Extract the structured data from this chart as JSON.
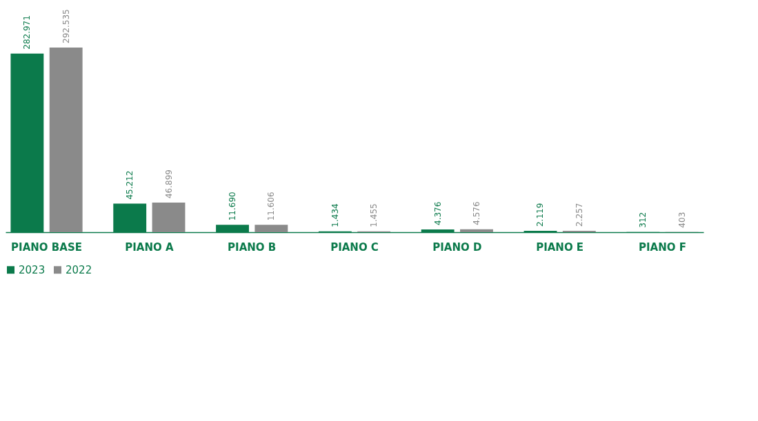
{
  "chart_data": {
    "type": "bar",
    "categories": [
      "PIANO BASE",
      "PIANO A",
      "PIANO B",
      "PIANO C",
      "PIANO D",
      "PIANO E",
      "PIANO F"
    ],
    "series": [
      {
        "name": "2023",
        "color": "#0b7a4b",
        "values": [
          282971,
          45212,
          11690,
          1434,
          4376,
          2119,
          312
        ],
        "value_labels": [
          "282.971",
          "45.212",
          "11.690",
          "1.434",
          "4.376",
          "2.119",
          "312"
        ]
      },
      {
        "name": "2022",
        "color": "#8a8a8a",
        "values": [
          292535,
          46899,
          11606,
          1455,
          4576,
          2257,
          403
        ],
        "value_labels": [
          "292.535",
          "46.899",
          "11.606",
          "1.455",
          "4.576",
          "2.257",
          "403"
        ]
      }
    ],
    "legend": "bottom"
  }
}
